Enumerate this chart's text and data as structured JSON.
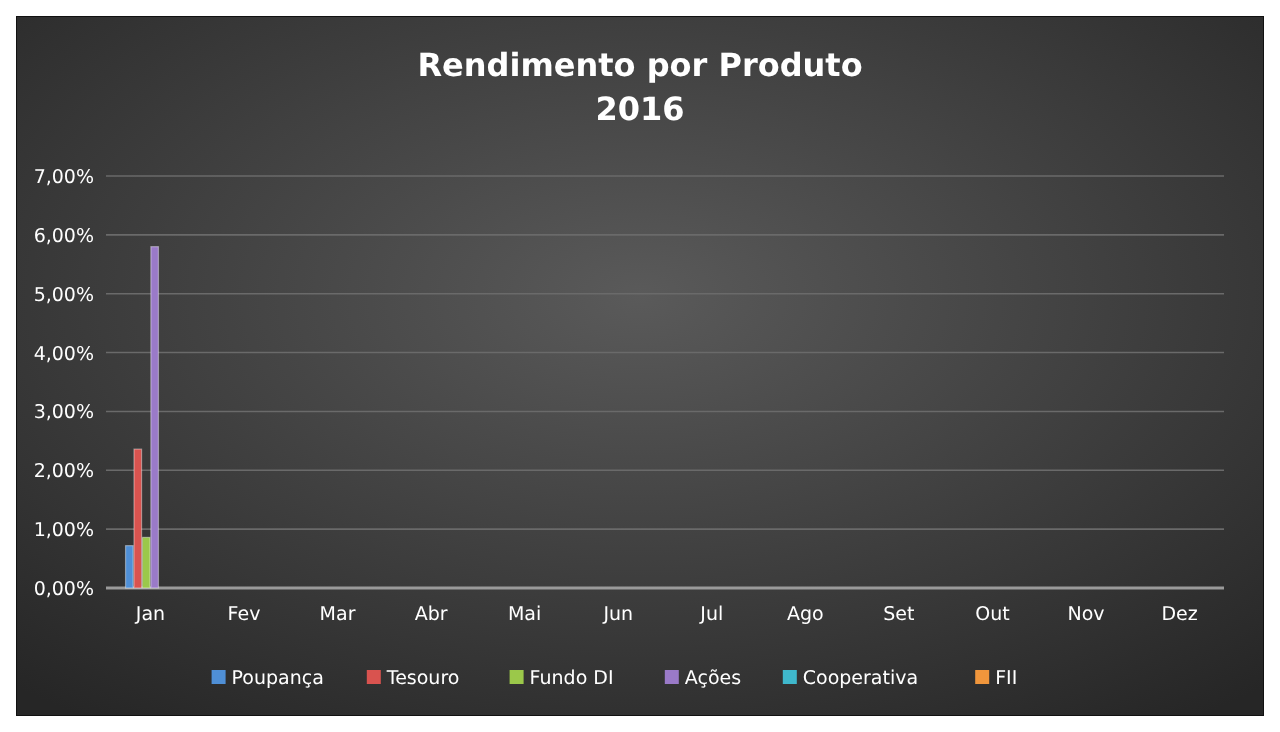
{
  "chart_data": {
    "type": "bar",
    "title": "Rendimento por Produto\n2016",
    "categories": [
      "Jan",
      "Fev",
      "Mar",
      "Abr",
      "Mai",
      "Jun",
      "Jul",
      "Ago",
      "Set",
      "Out",
      "Nov",
      "Dez"
    ],
    "series": [
      {
        "name": "Poupança",
        "color": "#4f8fd6",
        "values": [
          0.72,
          null,
          null,
          null,
          null,
          null,
          null,
          null,
          null,
          null,
          null,
          null
        ]
      },
      {
        "name": "Tesouro",
        "color": "#d9534f",
        "values": [
          2.36,
          null,
          null,
          null,
          null,
          null,
          null,
          null,
          null,
          null,
          null,
          null
        ]
      },
      {
        "name": "Fundo DI",
        "color": "#9bc84a",
        "values": [
          0.86,
          null,
          null,
          null,
          null,
          null,
          null,
          null,
          null,
          null,
          null,
          null
        ]
      },
      {
        "name": "Ações",
        "color": "#9a7ac8",
        "values": [
          5.8,
          null,
          null,
          null,
          null,
          null,
          null,
          null,
          null,
          null,
          null,
          null
        ]
      },
      {
        "name": "Cooperativa",
        "color": "#3fb8cc",
        "values": [
          null,
          null,
          null,
          null,
          null,
          null,
          null,
          null,
          null,
          null,
          null,
          null
        ]
      },
      {
        "name": "FII",
        "color": "#f0963c",
        "values": [
          null,
          null,
          null,
          null,
          null,
          null,
          null,
          null,
          null,
          null,
          null,
          null
        ]
      }
    ],
    "ylim": [
      0,
      7
    ],
    "yticks": [
      {
        "value": 0,
        "label": "0,00%"
      },
      {
        "value": 1,
        "label": "1,00%"
      },
      {
        "value": 2,
        "label": "2,00%"
      },
      {
        "value": 3,
        "label": "3,00%"
      },
      {
        "value": 4,
        "label": "4,00%"
      },
      {
        "value": 5,
        "label": "5,00%"
      },
      {
        "value": 6,
        "label": "6,00%"
      },
      {
        "value": 7,
        "label": "7,00%"
      }
    ],
    "grid": "y",
    "legend": "bottom"
  }
}
